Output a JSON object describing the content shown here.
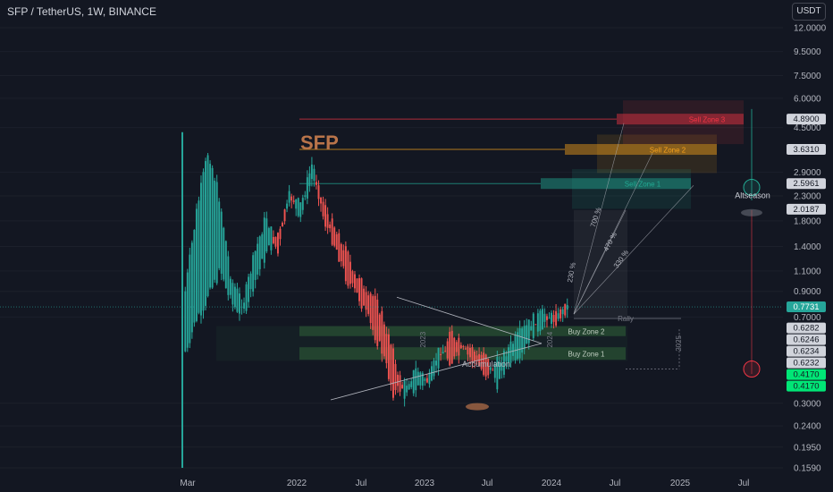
{
  "header": {
    "title": "SFP / TetherUS, 1W, BINANCE",
    "currency_button": "USDT"
  },
  "colors": {
    "background": "#131722",
    "up": "#26a69a",
    "down": "#ef5350",
    "text": "#d1d4dc",
    "axis_text": "#b2b5be",
    "sell_zone_3": "#f23645",
    "sell_zone_2": "#f7a21b",
    "sell_zone_1": "#22ab94",
    "buy_zone": "#4caf50",
    "title_overlay": "#b9744a"
  },
  "chart_data": {
    "type": "candlestick",
    "title": "SFP",
    "y_scale": "log",
    "ylim": [
      0.155,
      13.5
    ],
    "y_ticks": [
      "12.0000",
      "9.5000",
      "7.5000",
      "6.0000",
      "4.5000",
      "2.9000",
      "2.3000",
      "1.8000",
      "1.4000",
      "1.1000",
      "0.9000",
      "0.7000",
      "0.3000",
      "0.2400",
      "0.1950",
      "0.1590"
    ],
    "x_ticks": [
      "Mar",
      "2022",
      "Jul",
      "2023",
      "Jul",
      "2024",
      "Jul",
      "2025",
      "Jul"
    ],
    "price_labels": [
      {
        "text": "4.8900",
        "value": 4.89,
        "style": "gray"
      },
      {
        "text": "3.6310",
        "value": 3.631,
        "style": "gray"
      },
      {
        "text": "2.5961",
        "value": 2.5961,
        "style": "gray"
      },
      {
        "text": "2.0187",
        "value": 2.0187,
        "style": "gray"
      },
      {
        "text": "0.7731",
        "value": 0.7731,
        "style": "current"
      },
      {
        "text": "0.6282",
        "value": 0.6282,
        "style": "gray"
      },
      {
        "text": "0.6246",
        "value": 0.6246,
        "style": "gray"
      },
      {
        "text": "0.6234",
        "value": 0.6234,
        "style": "gray"
      },
      {
        "text": "0.6232",
        "value": 0.6232,
        "style": "gray"
      },
      {
        "text": "0.4170",
        "value": 0.417,
        "style": "green"
      },
      {
        "text": "0.4170",
        "value": 0.417,
        "style": "green"
      }
    ],
    "current_price": 0.7731,
    "price_path": [
      [
        0.5,
        0.9
      ],
      [
        0.7,
        2.0
      ],
      [
        0.85,
        3.6
      ],
      [
        1.1,
        2.2
      ],
      [
        0.8,
        1.0
      ],
      [
        0.72,
        0.8
      ],
      [
        1.0,
        1.3
      ],
      [
        1.3,
        1.9
      ],
      [
        1.6,
        1.3
      ],
      [
        2.3,
        2.3
      ],
      [
        1.9,
        2.1
      ],
      [
        2.8,
        3.2
      ],
      [
        2.1,
        1.8
      ],
      [
        1.6,
        1.4
      ],
      [
        1.3,
        1.0
      ],
      [
        1.0,
        0.85
      ],
      [
        0.9,
        0.65
      ],
      [
        0.72,
        0.5
      ],
      [
        0.48,
        0.33
      ],
      [
        0.32,
        0.36
      ],
      [
        0.35,
        0.42
      ],
      [
        0.38,
        0.37
      ],
      [
        0.45,
        0.52
      ],
      [
        0.6,
        0.45
      ],
      [
        0.55,
        0.5
      ],
      [
        0.5,
        0.45
      ],
      [
        0.47,
        0.4
      ],
      [
        0.36,
        0.45
      ],
      [
        0.46,
        0.52
      ],
      [
        0.5,
        0.6
      ],
      [
        0.6,
        0.68
      ],
      [
        0.66,
        0.73
      ],
      [
        0.7,
        0.68
      ],
      [
        0.77,
        0.77
      ]
    ],
    "zones": [
      {
        "name": "Sell Zone 3",
        "value": 4.89,
        "low": 4.25,
        "high": 5.6
      },
      {
        "name": "Sell Zone 2",
        "value": 3.631,
        "low": 3.2,
        "high": 4.0
      },
      {
        "name": "Sell Zone 1",
        "value": 2.5961,
        "low": 2.25,
        "high": 2.85
      },
      {
        "name": "Buy Zone 2",
        "value": 0.6246,
        "low": 0.58,
        "high": 0.64
      },
      {
        "name": "Buy Zone 1",
        "value": 0.5,
        "low": 0.46,
        "high": 0.52
      }
    ],
    "annotations": [
      {
        "text": "SFP",
        "kind": "title"
      },
      {
        "text": "Accumulation",
        "kind": "label"
      },
      {
        "text": "Rally",
        "kind": "label"
      },
      {
        "text": "Altseason",
        "kind": "label"
      },
      {
        "text": "230 %",
        "kind": "projection"
      },
      {
        "text": "700 %",
        "kind": "projection"
      },
      {
        "text": "470 %",
        "kind": "projection"
      },
      {
        "text": "330 %",
        "kind": "projection"
      },
      {
        "text": "2025",
        "kind": "bracket"
      },
      {
        "text": "2024",
        "kind": "bracket"
      },
      {
        "text": "2023",
        "kind": "bracket"
      }
    ]
  }
}
